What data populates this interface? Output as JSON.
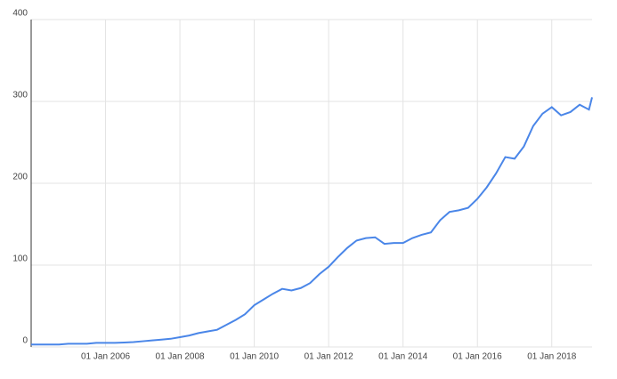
{
  "chart_data": {
    "type": "line",
    "x": [
      "2004-01",
      "2004-04",
      "2004-07",
      "2004-10",
      "2005-01",
      "2005-04",
      "2005-07",
      "2005-10",
      "2006-01",
      "2006-04",
      "2006-07",
      "2006-10",
      "2007-01",
      "2007-04",
      "2007-07",
      "2007-10",
      "2008-01",
      "2008-04",
      "2008-07",
      "2008-10",
      "2009-01",
      "2009-04",
      "2009-07",
      "2009-10",
      "2010-01",
      "2010-04",
      "2010-07",
      "2010-10",
      "2011-01",
      "2011-04",
      "2011-07",
      "2011-10",
      "2012-01",
      "2012-04",
      "2012-07",
      "2012-10",
      "2013-01",
      "2013-04",
      "2013-07",
      "2013-10",
      "2014-01",
      "2014-04",
      "2014-07",
      "2014-10",
      "2015-01",
      "2015-04",
      "2015-07",
      "2015-10",
      "2016-01",
      "2016-04",
      "2016-07",
      "2016-10",
      "2017-01",
      "2017-04",
      "2017-07",
      "2017-10",
      "2018-01",
      "2018-04",
      "2018-07",
      "2018-10",
      "2019-01",
      "2019-02"
    ],
    "series": [
      {
        "color": "#4a86e8",
        "values": [
          3,
          3,
          3,
          3,
          4,
          4,
          4,
          5,
          5,
          5,
          5.5,
          6,
          7,
          8,
          9,
          10,
          12,
          14,
          17,
          19,
          21,
          27,
          33,
          40,
          51,
          58,
          65,
          71,
          69,
          72,
          78,
          89,
          98,
          110,
          121,
          130,
          133,
          134,
          126,
          127,
          127,
          133,
          137,
          140,
          155,
          165,
          167,
          170,
          181,
          195,
          212,
          232,
          230,
          245,
          270,
          285,
          293,
          283,
          287,
          296,
          290,
          305
        ]
      }
    ],
    "xlim": [
      "2004-01",
      "2019-02"
    ],
    "xticks": [
      {
        "value": "2006-01",
        "label": "01 Jan 2006"
      },
      {
        "value": "2008-01",
        "label": "01 Jan 2008"
      },
      {
        "value": "2010-01",
        "label": "01 Jan 2010"
      },
      {
        "value": "2012-01",
        "label": "01 Jan 2012"
      },
      {
        "value": "2014-01",
        "label": "01 Jan 2014"
      },
      {
        "value": "2016-01",
        "label": "01 Jan 2016"
      },
      {
        "value": "2018-01",
        "label": "01 Jan 2018"
      }
    ],
    "ylim": [
      0,
      400
    ],
    "yticks": [
      0,
      100,
      200,
      300,
      400
    ],
    "grid": true
  }
}
